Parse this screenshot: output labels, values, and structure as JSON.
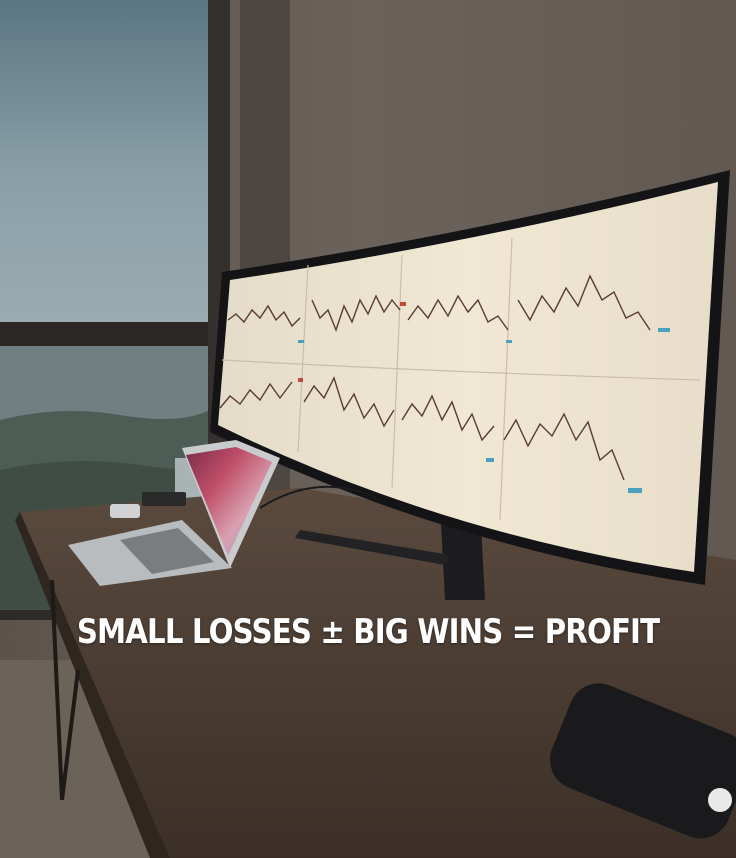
{
  "caption": "SMALL LOSSES ± BIG WINS = PROFIT",
  "colors": {
    "wall": "#4f4740",
    "sky": "#6f8a96",
    "desk": "#4a3c32",
    "screen": "#ece3cf",
    "chart_line": "#5a3b34",
    "caption_text": "#ffffff"
  }
}
